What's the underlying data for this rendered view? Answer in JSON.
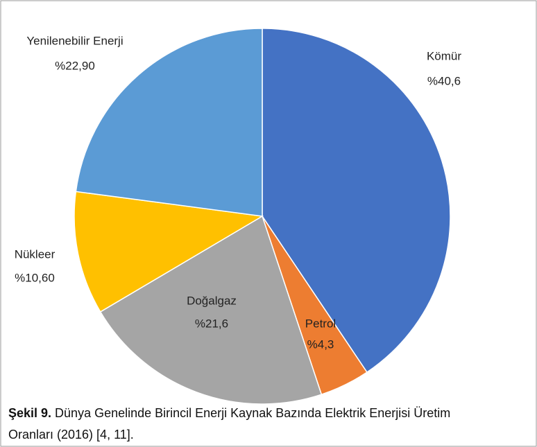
{
  "chart_data": {
    "type": "pie",
    "categories": [
      "Kömür",
      "Petrol",
      "Doğalgaz",
      "Nükleer",
      "Yenilenebilir Enerji"
    ],
    "values": [
      40.6,
      4.3,
      21.6,
      10.6,
      22.9
    ],
    "value_labels": [
      "%40,6",
      "%4,3",
      "%21,6",
      "%10,60",
      "%22,90"
    ],
    "colors": [
      "#4472c4",
      "#ed7d31",
      "#a5a5a5",
      "#ffc000",
      "#5b9bd5"
    ]
  },
  "caption": {
    "label": "Şekil 9.",
    "lines": [
      "Dünya Genelinde Birincil Enerji Kaynak Bazında Elektrik Enerjisi Üretim",
      "Oranları (2016) [4, 11]."
    ]
  }
}
